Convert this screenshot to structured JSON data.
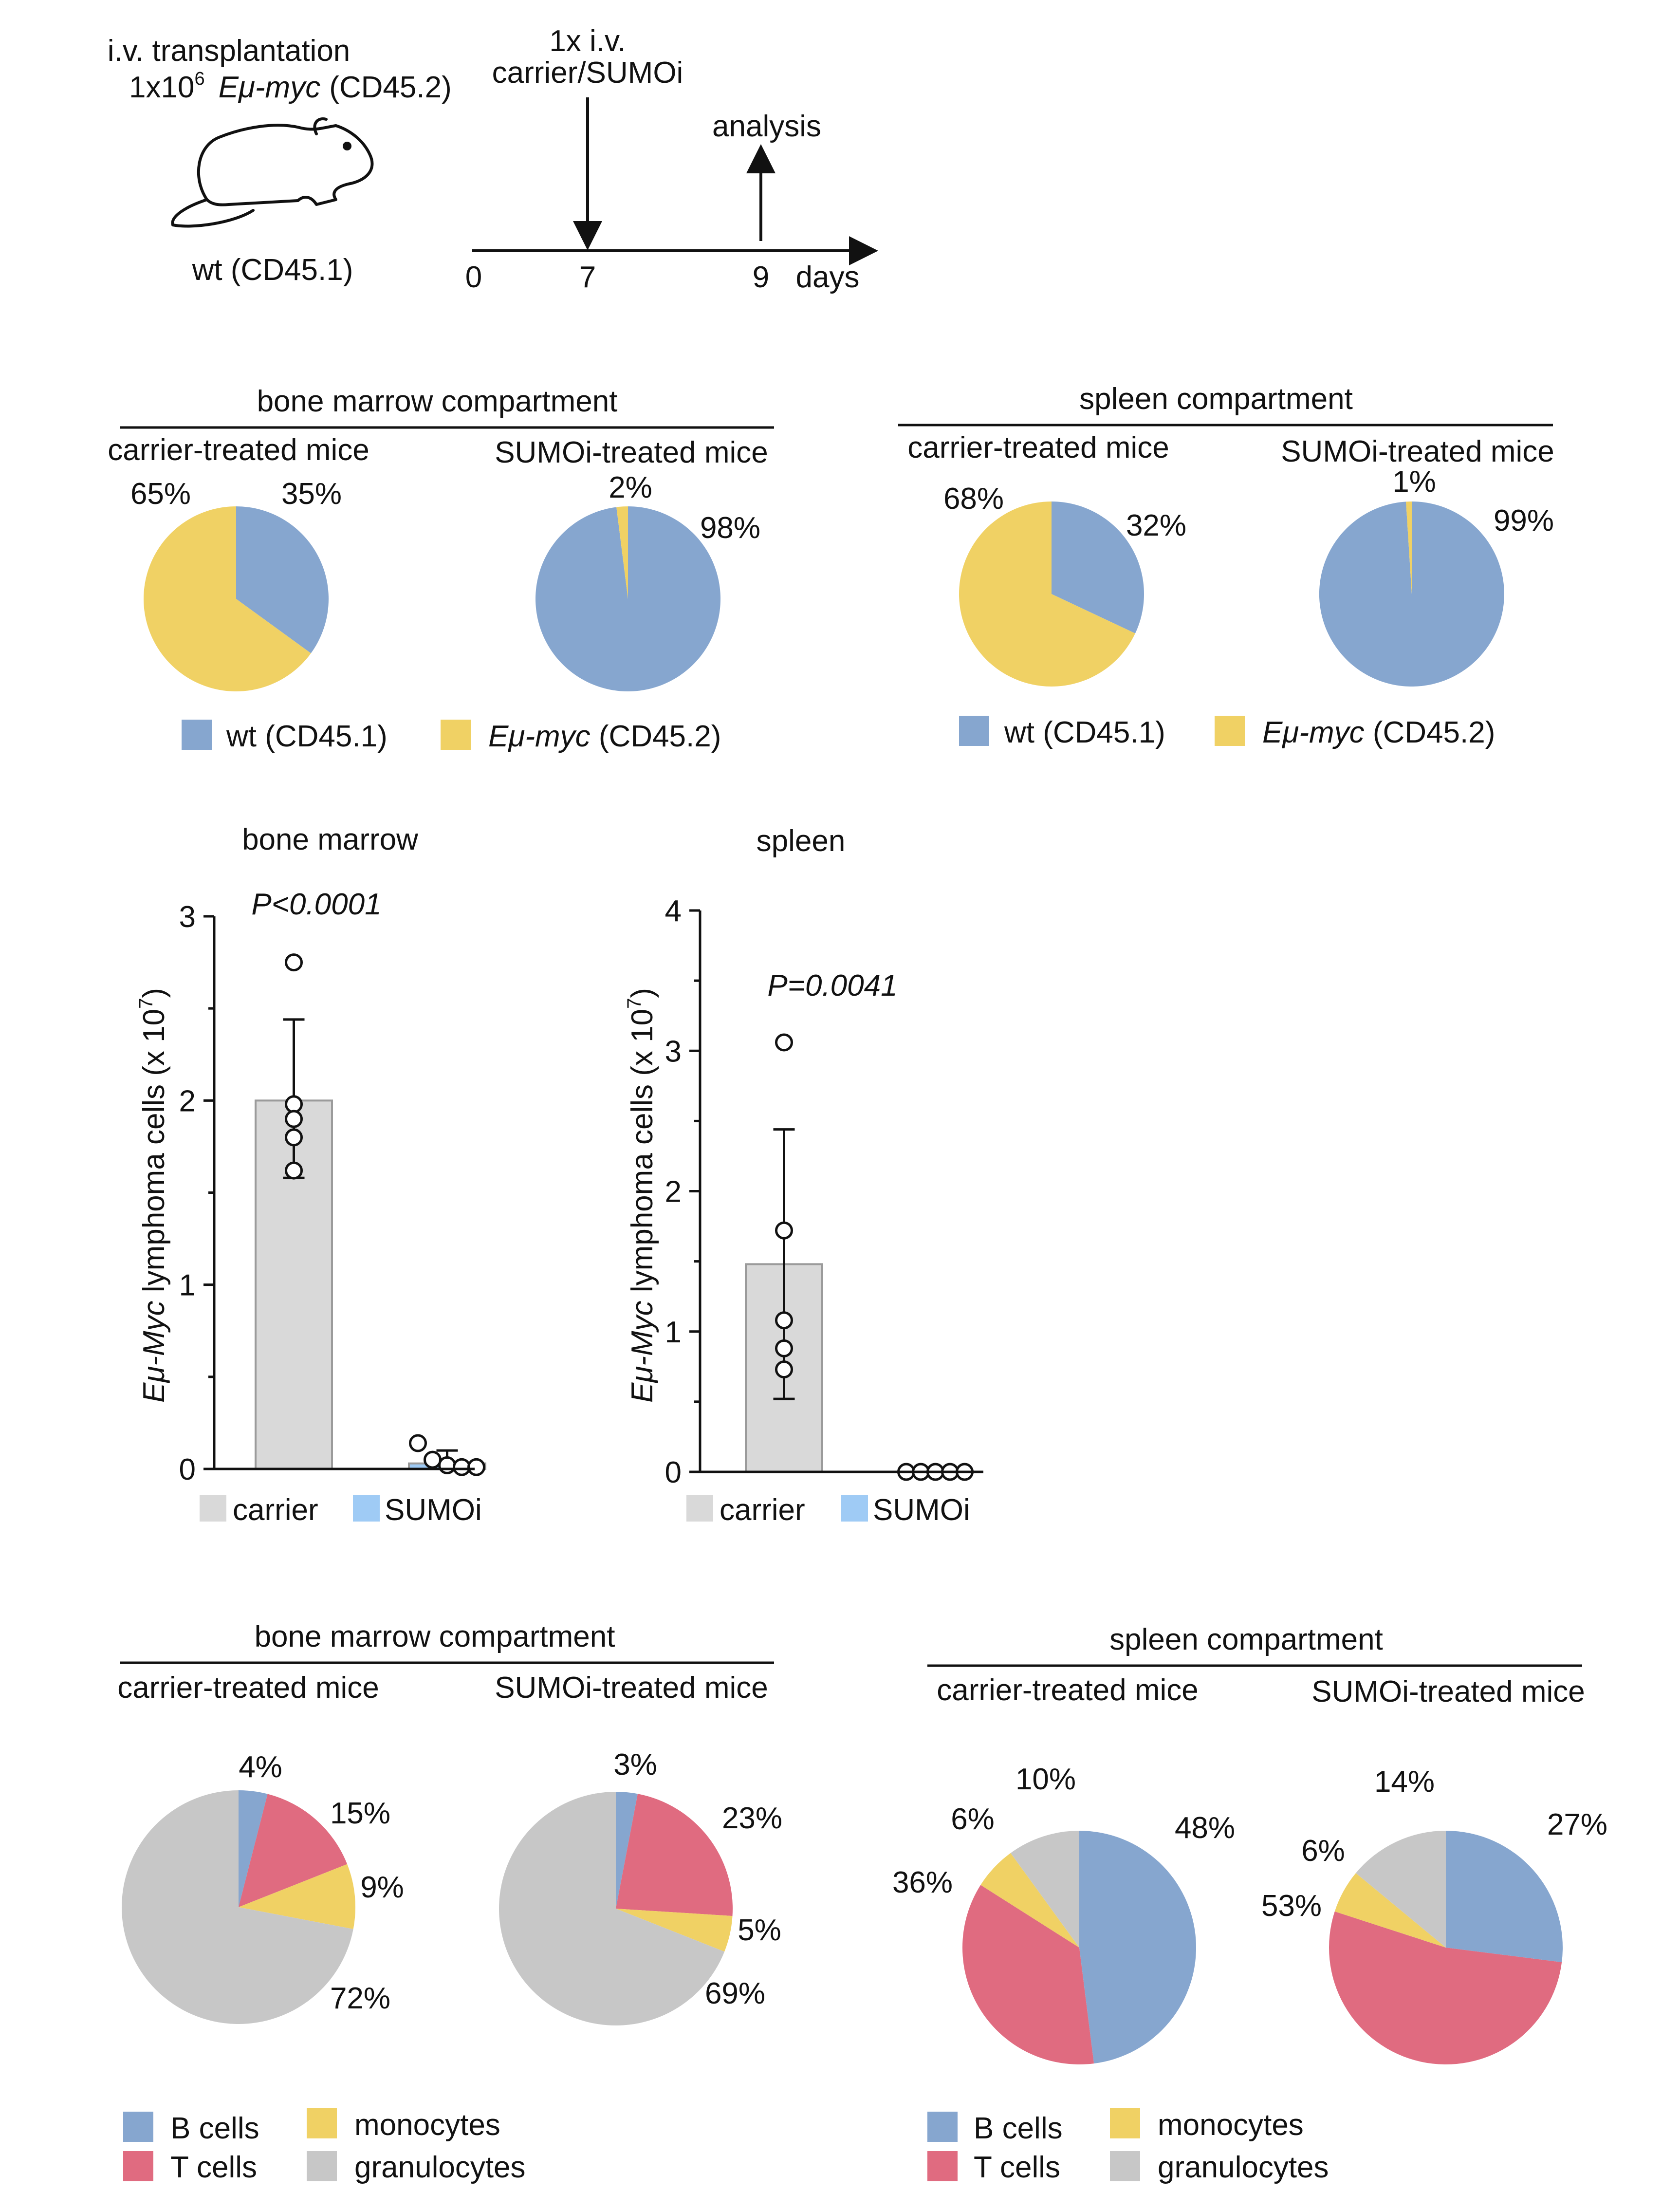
{
  "scheme": {
    "transplant_line1": "i.v. transplantation",
    "transplant_prefix": "1x10",
    "transplant_exp": "6",
    "transplant_cells": "Eμ-myc",
    "transplant_marker": "(CD45.2)",
    "mouse_label": "wt (CD45.1)",
    "treatment_line1": "1x i.v.",
    "treatment_line2": "carrier/SUMOi",
    "analysis_label": "analysis",
    "ticks": [
      "0",
      "7",
      "9"
    ],
    "unit": "days",
    "mouse_icon": "mouse-icon"
  },
  "chimerism": {
    "colors": {
      "wt": "#86a6cf",
      "myc": "#f0d164"
    },
    "legend": [
      {
        "key": "wt",
        "plain": "wt (CD45.1)",
        "italic": ""
      },
      {
        "key": "myc",
        "plain": " (CD45.2)",
        "italic": "Eμ-myc"
      }
    ],
    "panels": [
      {
        "title": "bone marrow compartment",
        "pies": [
          {
            "title": "carrier-treated mice",
            "labels": [
              "35%",
              "65%"
            ]
          },
          {
            "title": "SUMOi-treated mice",
            "labels": [
              "98%",
              "2%"
            ]
          }
        ]
      },
      {
        "title": "spleen compartment",
        "pies": [
          {
            "title": "carrier-treated mice",
            "labels": [
              "32%",
              "68%"
            ]
          },
          {
            "title": "SUMOi-treated mice",
            "labels": [
              "99%",
              "1%"
            ]
          }
        ]
      }
    ]
  },
  "bars": {
    "ylabel_italic": "Eμ-Myc",
    "ylabel_plain": " lymphoma cells (x 10",
    "ylabel_exp": "7",
    "ylabel_close": ")",
    "legend": [
      {
        "label": "carrier",
        "color": "#d9d9d9"
      },
      {
        "label": "SUMOi",
        "color": "#9fcbf5"
      }
    ],
    "charts": [
      {
        "title": "bone marrow",
        "pvalue": "P<0.0001",
        "ticks": [
          "0",
          "1",
          "2",
          "3"
        ]
      },
      {
        "title": "spleen",
        "pvalue": "P=0.0041",
        "ticks": [
          "0",
          "1",
          "2",
          "3",
          "4"
        ]
      }
    ]
  },
  "composition": {
    "colors": {
      "B": "#86a6cf",
      "T": "#e06b80",
      "mono": "#f0d164",
      "gran": "#c7c7c7"
    },
    "legend": [
      {
        "key": "B",
        "label": "B cells"
      },
      {
        "key": "mono",
        "label": "monocytes"
      },
      {
        "key": "T",
        "label": "T cells"
      },
      {
        "key": "gran",
        "label": "granulocytes"
      }
    ],
    "panels": [
      {
        "title": "bone marrow compartment",
        "pies": [
          {
            "title": "carrier-treated mice",
            "labels": [
              "4%",
              "15%",
              "9%",
              "72%"
            ]
          },
          {
            "title": "SUMOi-treated mice",
            "labels": [
              "3%",
              "23%",
              "5%",
              "69%"
            ]
          }
        ]
      },
      {
        "title": "spleen compartment",
        "pies": [
          {
            "title": "carrier-treated mice",
            "labels": [
              "48%",
              "36%",
              "6%",
              "10%"
            ]
          },
          {
            "title": "SUMOi-treated mice",
            "labels": [
              "27%",
              "53%",
              "6%",
              "14%"
            ]
          }
        ]
      }
    ]
  },
  "chart_data": [
    {
      "type": "pie",
      "title": "bone marrow compartment — carrier-treated mice",
      "labels": [
        "wt (CD45.1)",
        "Eμ-myc (CD45.2)"
      ],
      "values": [
        35,
        65
      ]
    },
    {
      "type": "pie",
      "title": "bone marrow compartment — SUMOi-treated mice",
      "labels": [
        "wt (CD45.1)",
        "Eμ-myc (CD45.2)"
      ],
      "values": [
        98,
        2
      ]
    },
    {
      "type": "pie",
      "title": "spleen compartment — carrier-treated mice",
      "labels": [
        "wt (CD45.1)",
        "Eμ-myc (CD45.2)"
      ],
      "values": [
        32,
        68
      ]
    },
    {
      "type": "pie",
      "title": "spleen compartment — SUMOi-treated mice",
      "labels": [
        "wt (CD45.1)",
        "Eμ-myc (CD45.2)"
      ],
      "values": [
        99,
        1
      ]
    },
    {
      "type": "bar",
      "title": "bone marrow",
      "categories": [
        "carrier",
        "SUMOi"
      ],
      "values": [
        2.0,
        0.03
      ],
      "error_upper": [
        2.44,
        0.1
      ],
      "error_lower": [
        1.58,
        0.0
      ],
      "points": [
        [
          2.75,
          1.98,
          1.9,
          1.8,
          1.62
        ],
        [
          0.14,
          0.05,
          0.02,
          0.01,
          0.01
        ]
      ],
      "annotation": "P<0.0001",
      "ylabel": "Eμ-Myc lymphoma cells (x 10^7)",
      "ylim": [
        0,
        3
      ]
    },
    {
      "type": "bar",
      "title": "spleen",
      "categories": [
        "carrier",
        "SUMOi"
      ],
      "values": [
        1.48,
        0.0
      ],
      "error_upper": [
        2.44,
        0.0
      ],
      "error_lower": [
        0.52,
        0.0
      ],
      "points": [
        [
          3.06,
          1.72,
          1.08,
          0.88,
          0.73
        ],
        [
          0,
          0,
          0,
          0,
          0
        ]
      ],
      "annotation": "P=0.0041",
      "ylabel": "Eμ-Myc lymphoma cells (x 10^7)",
      "ylim": [
        0,
        4
      ]
    },
    {
      "type": "pie",
      "title": "bone marrow compartment — carrier-treated mice",
      "labels": [
        "B cells",
        "T cells",
        "monocytes",
        "granulocytes"
      ],
      "values": [
        4,
        15,
        9,
        72
      ]
    },
    {
      "type": "pie",
      "title": "bone marrow compartment — SUMOi-treated mice",
      "labels": [
        "B cells",
        "T cells",
        "monocytes",
        "granulocytes"
      ],
      "values": [
        3,
        23,
        5,
        69
      ]
    },
    {
      "type": "pie",
      "title": "spleen compartment — carrier-treated mice",
      "labels": [
        "B cells",
        "T cells",
        "monocytes",
        "granulocytes"
      ],
      "values": [
        48,
        36,
        6,
        10
      ]
    },
    {
      "type": "pie",
      "title": "spleen compartment — SUMOi-treated mice",
      "labels": [
        "B cells",
        "T cells",
        "monocytes",
        "granulocytes"
      ],
      "values": [
        27,
        53,
        6,
        14
      ]
    }
  ]
}
